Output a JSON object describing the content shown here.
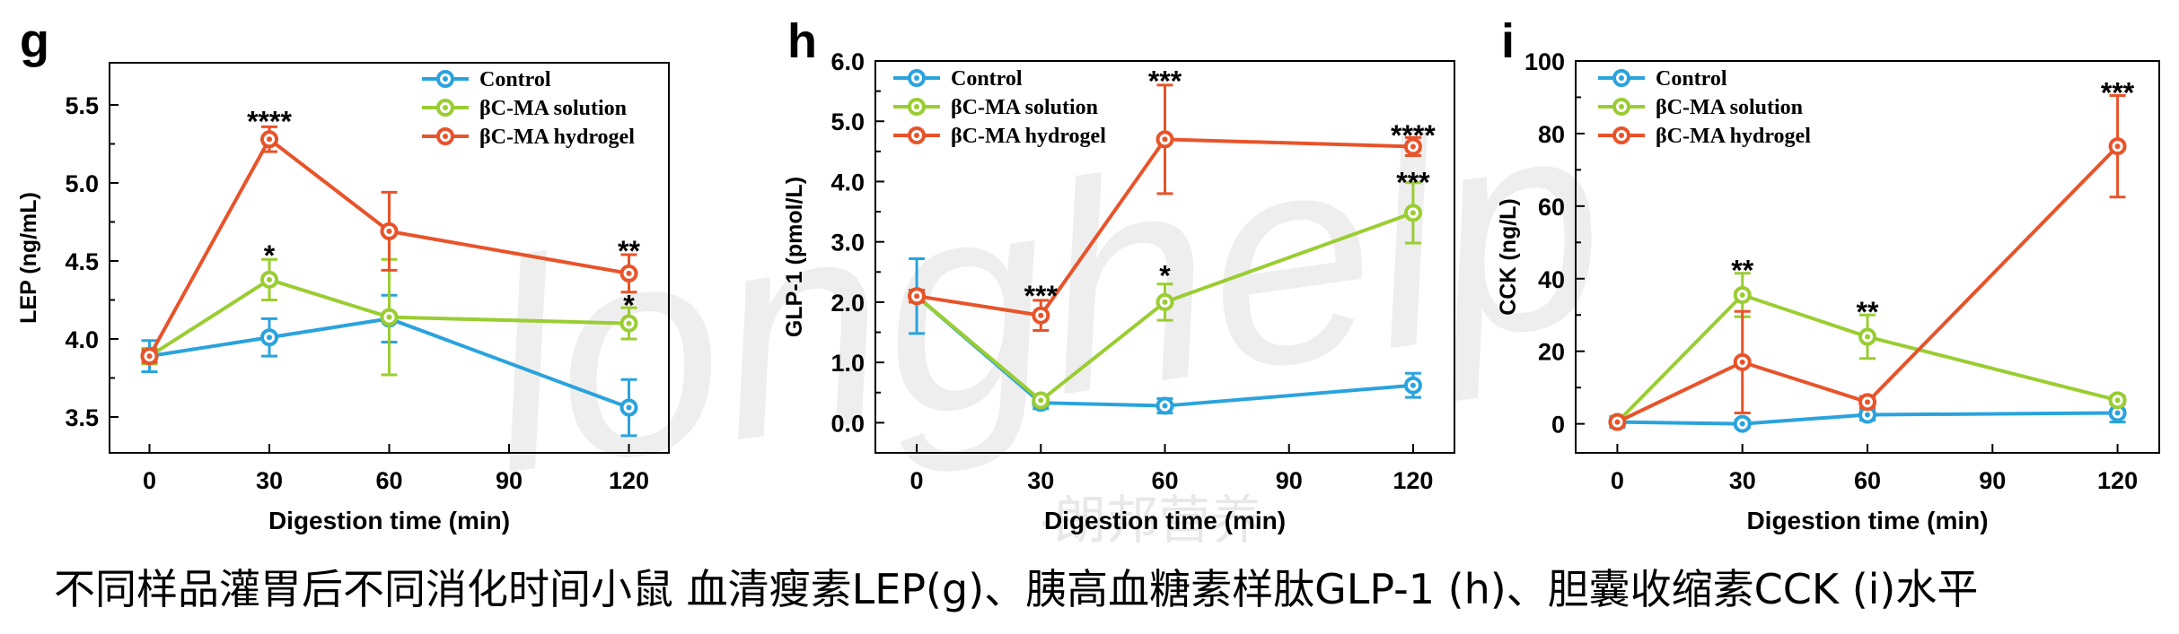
{
  "caption": "不同样品灌胃后不同消化时间小鼠 血清瘦素LEP(g)、胰高血糖素样肽GLP-1 (h)、胆囊收缩素CCK (i)水平",
  "watermark": {
    "text": "longhelp",
    "subtext": "·朗邦营养·"
  },
  "colors": {
    "Control": "#2aa3dd",
    "βC-MA solution": "#9acd32",
    "βC-MA hydrogel": "#e8532a"
  },
  "chart_data": [
    {
      "panel": "g",
      "type": "line",
      "xlabel": "Digestion time (min)",
      "ylabel": "LEP (ng/mL)",
      "x": [
        0,
        30,
        60,
        120
      ],
      "xticks": [
        0,
        30,
        60,
        90,
        120
      ],
      "xlim": [
        -10,
        130
      ],
      "ylim": [
        3.27,
        5.77
      ],
      "yticks": [
        "3.5",
        "4.0",
        "4.5",
        "5.0",
        "5.5"
      ],
      "legend": [
        "Control",
        "βC-MA solution",
        "βC-MA hydrogel"
      ],
      "series": [
        {
          "name": "Control",
          "values": [
            3.89,
            4.01,
            4.13,
            3.56
          ],
          "err": [
            0.1,
            0.12,
            0.15,
            0.18
          ]
        },
        {
          "name": "βC-MA solution",
          "values": [
            3.89,
            4.38,
            4.14,
            4.1
          ],
          "err": [
            0.05,
            0.13,
            0.37,
            0.1
          ]
        },
        {
          "name": "βC-MA hydrogel",
          "values": [
            3.89,
            5.28,
            4.69,
            4.42
          ],
          "err": [
            0.04,
            0.08,
            0.25,
            0.12
          ]
        }
      ],
      "annotations": [
        {
          "x": 30,
          "y": 5.4,
          "text": "****"
        },
        {
          "x": 30,
          "y": 4.54,
          "text": "*"
        },
        {
          "x": 120,
          "y": 4.57,
          "text": "**"
        },
        {
          "x": 120,
          "y": 4.22,
          "text": "*"
        }
      ]
    },
    {
      "panel": "h",
      "type": "line",
      "xlabel": "Digestion time (min)",
      "ylabel": "GLP-1 (pmol/L)",
      "x": [
        0,
        30,
        60,
        120
      ],
      "xticks": [
        0,
        30,
        60,
        90,
        120
      ],
      "xlim": [
        -10,
        130
      ],
      "ylim": [
        -0.5,
        6.0
      ],
      "yticks": [
        "0.0",
        "1.0",
        "2.0",
        "3.0",
        "4.0",
        "5.0",
        "6.0"
      ],
      "legend": [
        "Control",
        "βC-MA solution",
        "βC-MA hydrogel"
      ],
      "series": [
        {
          "name": "Control",
          "values": [
            2.1,
            0.33,
            0.28,
            0.62
          ],
          "err": [
            0.62,
            0.1,
            0.12,
            0.2
          ]
        },
        {
          "name": "βC-MA solution",
          "values": [
            2.1,
            0.37,
            2.0,
            3.48
          ],
          "err": [
            0.1,
            0.08,
            0.3,
            0.5
          ]
        },
        {
          "name": "βC-MA hydrogel",
          "values": [
            2.1,
            1.78,
            4.7,
            4.58
          ],
          "err": [
            0.1,
            0.25,
            0.9,
            0.15
          ]
        }
      ],
      "annotations": [
        {
          "x": 30,
          "y": 2.12,
          "text": "***"
        },
        {
          "x": 60,
          "y": 2.45,
          "text": "*"
        },
        {
          "x": 60,
          "y": 5.68,
          "text": "***"
        },
        {
          "x": 120,
          "y": 4.78,
          "text": "****"
        },
        {
          "x": 120,
          "y": 4.0,
          "text": "***"
        }
      ]
    },
    {
      "panel": "i",
      "type": "line",
      "xlabel": "Digestion time (min)",
      "ylabel": "CCK (ng/L)",
      "x": [
        0,
        30,
        60,
        120
      ],
      "xticks": [
        0,
        30,
        60,
        90,
        120
      ],
      "xlim": [
        -10,
        130
      ],
      "ylim": [
        -8,
        100
      ],
      "yticks": [
        "0",
        "20",
        "40",
        "60",
        "80",
        "100"
      ],
      "legend": [
        "Control",
        "βC-MA solution",
        "βC-MA hydrogel"
      ],
      "series": [
        {
          "name": "Control",
          "values": [
            0.5,
            0,
            2.5,
            3
          ],
          "err": [
            1.5,
            1,
            1.5,
            2.5
          ]
        },
        {
          "name": "βC-MA solution",
          "values": [
            0.5,
            35.5,
            24,
            6.5
          ],
          "err": [
            0.5,
            6,
            6,
            1.2
          ]
        },
        {
          "name": "βC-MA hydrogel",
          "values": [
            0.5,
            17,
            6,
            76.5
          ],
          "err": [
            0.5,
            14,
            1.5,
            14
          ]
        }
      ],
      "annotations": [
        {
          "x": 30,
          "y": 42.5,
          "text": "**"
        },
        {
          "x": 60,
          "y": 31,
          "text": "**"
        },
        {
          "x": 120,
          "y": 91.5,
          "text": "***"
        }
      ]
    }
  ]
}
